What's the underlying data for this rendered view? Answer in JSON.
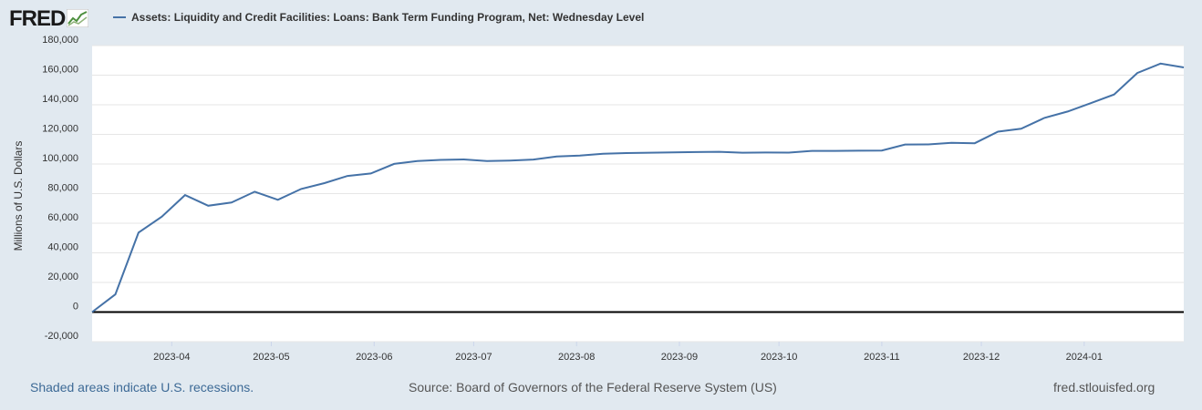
{
  "header": {
    "logo_text": "FRED",
    "legend_label": "Assets: Liquidity and Credit Facilities: Loans: Bank Term Funding Program, Net: Wednesday Level"
  },
  "footer": {
    "recessions_note": "Shaded areas indicate U.S. recessions.",
    "source": "Source: Board of Governors of the Federal Reserve System (US)",
    "site": "fred.stlouisfed.org"
  },
  "colors": {
    "line": "#4572a7",
    "background": "#e1e9f0",
    "plot": "#ffffff",
    "zero_line": "#000000"
  },
  "icons": {
    "logo": "chart-line-icon"
  },
  "chart_data": {
    "type": "line",
    "ylabel": "Millions of U.S. Dollars",
    "ylim": [
      -20000,
      180000
    ],
    "yticks": [
      180000,
      160000,
      140000,
      120000,
      100000,
      80000,
      60000,
      40000,
      20000,
      0,
      -20000
    ],
    "ytick_labels": [
      "180,000",
      "160,000",
      "140,000",
      "120,000",
      "100,000",
      "80,000",
      "60,000",
      "40,000",
      "20,000",
      "0",
      "-20,000"
    ],
    "xlim": [
      "2023-03-08",
      "2024-01-31"
    ],
    "xticks": [
      "2023-04-01",
      "2023-05-01",
      "2023-06-01",
      "2023-07-01",
      "2023-08-01",
      "2023-09-01",
      "2023-10-01",
      "2023-11-01",
      "2023-12-01",
      "2024-01-01"
    ],
    "xtick_labels": [
      "2023-04",
      "2023-05",
      "2023-06",
      "2023-07",
      "2023-08",
      "2023-09",
      "2023-10",
      "2023-11",
      "2023-12",
      "2024-01"
    ],
    "grid": true,
    "series": [
      {
        "name": "Assets: Liquidity and Credit Facilities: Loans: Bank Term Funding Program, Net: Wednesday Level",
        "x": [
          "2023-03-08",
          "2023-03-15",
          "2023-03-22",
          "2023-03-29",
          "2023-04-05",
          "2023-04-12",
          "2023-04-19",
          "2023-04-26",
          "2023-05-03",
          "2023-05-10",
          "2023-05-17",
          "2023-05-24",
          "2023-05-31",
          "2023-06-07",
          "2023-06-14",
          "2023-06-21",
          "2023-06-28",
          "2023-07-05",
          "2023-07-12",
          "2023-07-19",
          "2023-07-26",
          "2023-08-02",
          "2023-08-09",
          "2023-08-16",
          "2023-08-23",
          "2023-08-30",
          "2023-09-06",
          "2023-09-13",
          "2023-09-20",
          "2023-09-27",
          "2023-10-04",
          "2023-10-11",
          "2023-10-18",
          "2023-10-25",
          "2023-11-01",
          "2023-11-08",
          "2023-11-15",
          "2023-11-22",
          "2023-11-29",
          "2023-12-06",
          "2023-12-13",
          "2023-12-20",
          "2023-12-27",
          "2024-01-03",
          "2024-01-10",
          "2024-01-17",
          "2024-01-24",
          "2024-01-31"
        ],
        "values": [
          0,
          11943,
          53669,
          64403,
          79020,
          71837,
          73980,
          81263,
          75807,
          83129,
          87105,
          91961,
          93607,
          100078,
          101953,
          102739,
          103094,
          101978,
          102363,
          103006,
          105062,
          105685,
          106932,
          107394,
          107636,
          107821,
          108083,
          108237,
          107653,
          107751,
          107663,
          108865,
          108850,
          109002,
          109114,
          113167,
          113221,
          114284,
          114040,
          121864,
          123816,
          131115,
          135461,
          141084,
          146980,
          161450,
          167831,
          165236
        ]
      }
    ]
  }
}
